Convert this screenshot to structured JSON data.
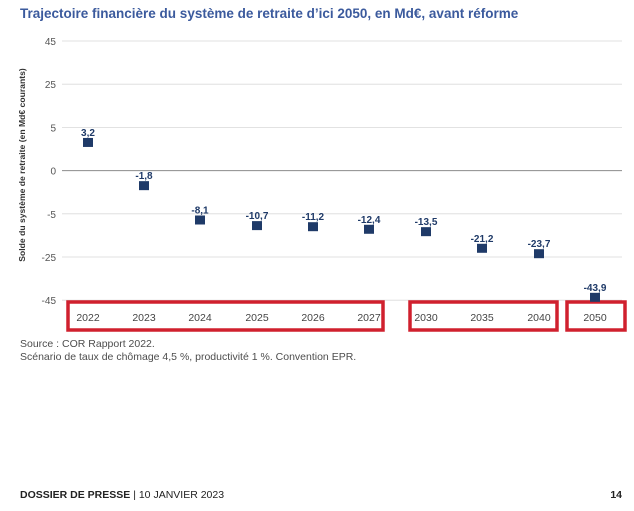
{
  "title": "Trajectoire financière du système de retraite d’ici 2050, en Md€, avant réforme",
  "source_lines": [
    "Source : COR Rapport 2022.",
    "Scénario de taux de chômage 4,5 %, productivité 1 %. Convention EPR."
  ],
  "footer": {
    "bold": "DOSSIER DE PRESSE",
    "separator": " | ",
    "date": "10 JANVIER 2023",
    "page_number": "14"
  },
  "colors": {
    "title": "#3b5a9d",
    "marker": "#1f3a68",
    "highlight_box": "#d0202e",
    "gridline": "#d9d9d9"
  },
  "chart_data": {
    "type": "scatter",
    "title": "Trajectoire financière du système de retraite d’ici 2050, en Md€, avant réforme",
    "ylabel": "Solde du système de retraite (en Md€ courants)",
    "xlabel": "",
    "y_ticks": [
      45,
      25,
      5,
      0,
      -5,
      -25,
      -45
    ],
    "categories": [
      "2022",
      "2023",
      "2024",
      "2025",
      "2026",
      "2027",
      "2030",
      "2035",
      "2040",
      "2050"
    ],
    "values": [
      3.2,
      -1.8,
      -8.1,
      -10.7,
      -11.2,
      -12.4,
      -13.5,
      -21.2,
      -23.7,
      -43.9
    ],
    "data_labels": [
      "3,2",
      "-1,8",
      "-8,1",
      "-10,7",
      "-11,2",
      "-12,4",
      "-13,5",
      "-21,2",
      "-23,7",
      "-43,9"
    ],
    "highlight_groups": [
      [
        "2022",
        "2023",
        "2024",
        "2025",
        "2026",
        "2027"
      ],
      [
        "2030",
        "2035",
        "2040"
      ],
      [
        "2050"
      ]
    ],
    "grid": true,
    "legend": "none"
  }
}
